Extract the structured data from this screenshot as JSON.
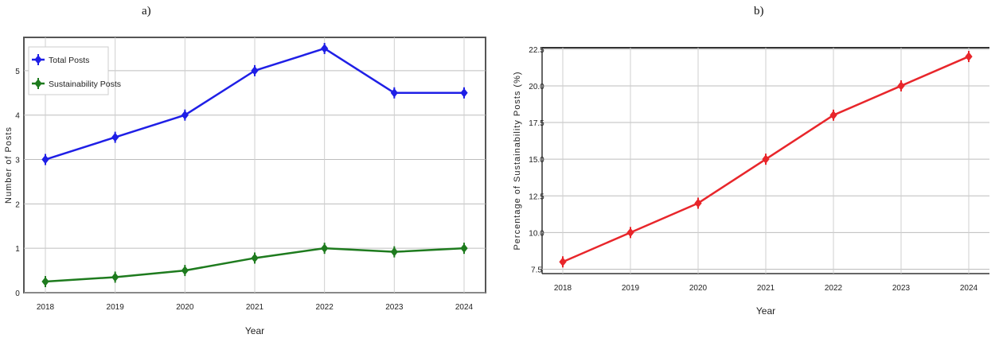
{
  "panels": {
    "a_label": "a)",
    "b_label": "b)"
  },
  "chart_data": [
    {
      "type": "line",
      "panel": "a",
      "x": [
        "2018",
        "2019",
        "2020",
        "2021",
        "2022",
        "2023",
        "2024"
      ],
      "x_tick_labels": [
        "2018",
        "2019",
        "2020",
        "2021",
        "2022",
        "2023",
        "2024"
      ],
      "series": [
        {
          "name": "Total Posts",
          "color": "#1f1fe6",
          "values": [
            3.0,
            3.5,
            4.0,
            5.0,
            5.5,
            4.5,
            4.5
          ]
        },
        {
          "name": "Sustainability Posts",
          "color": "#1e7b1e",
          "values": [
            0.25,
            0.35,
            0.5,
            0.78,
            1.0,
            0.92,
            1.0
          ]
        }
      ],
      "xlabel": "Year",
      "ylabel": "Number of Posts",
      "ylim": [
        0,
        5.75
      ],
      "yticks": [
        0,
        1,
        2,
        3,
        4,
        5
      ],
      "grid": true,
      "legend": "top-left"
    },
    {
      "type": "line",
      "panel": "b",
      "x": [
        "2018",
        "2019",
        "2020",
        "2021",
        "2022",
        "2023",
        "2024"
      ],
      "x_tick_labels": [
        "2018",
        "2019",
        "2020",
        "2021",
        "2022",
        "2023",
        "2024"
      ],
      "series": [
        {
          "color": "#e8262b",
          "values": [
            8.0,
            10.0,
            12.0,
            15.0,
            18.0,
            20.0,
            22.0
          ]
        }
      ],
      "xlabel": "Year",
      "ylabel": "Percentage of Sustainability Posts (%)",
      "ylim": [
        7.2,
        22.6
      ],
      "yticks": [
        7.5,
        10.0,
        12.5,
        15.0,
        17.5,
        20.0,
        22.5
      ],
      "ytick_labels": [
        "7.5",
        "10.0",
        "12.5",
        "15.0",
        "17.5",
        "20.0",
        "22.5"
      ],
      "grid": true
    }
  ]
}
